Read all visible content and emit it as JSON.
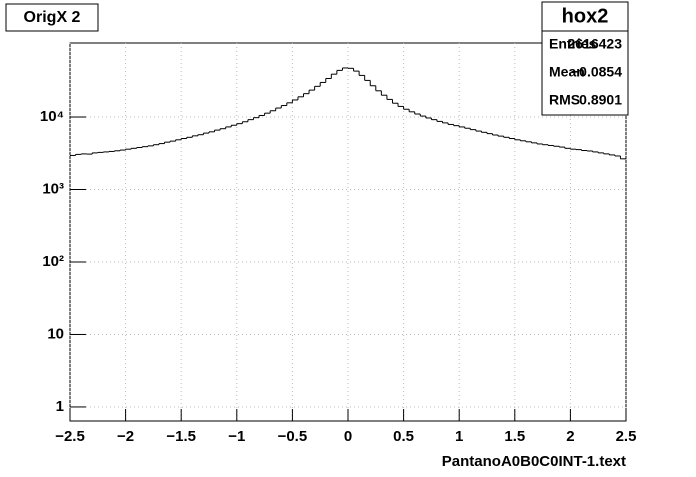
{
  "chart_data": {
    "type": "histogram",
    "title": "OrigX 2",
    "x_label": "PantanoA0B0C0INT-1.text",
    "bins": [
      -2.5,
      -2.45,
      -2.4,
      -2.35,
      -2.3,
      -2.25,
      -2.2,
      -2.15,
      -2.1,
      -2.05,
      -2,
      -1.95,
      -1.9,
      -1.85,
      -1.8,
      -1.75,
      -1.7,
      -1.65,
      -1.6,
      -1.55,
      -1.5,
      -1.45,
      -1.4,
      -1.35,
      -1.3,
      -1.25,
      -1.2,
      -1.15,
      -1.1,
      -1.05,
      -1,
      -0.95,
      -0.9,
      -0.85,
      -0.8,
      -0.75,
      -0.7,
      -0.65,
      -0.6,
      -0.55,
      -0.5,
      -0.45,
      -0.4,
      -0.35,
      -0.3,
      -0.25,
      -0.2,
      -0.15,
      -0.1,
      -0.05,
      0,
      0.05,
      0.1,
      0.15,
      0.2,
      0.25,
      0.3,
      0.35,
      0.4,
      0.45,
      0.5,
      0.55,
      0.6,
      0.65,
      0.7,
      0.75,
      0.8,
      0.85,
      0.9,
      0.95,
      1,
      1.05,
      1.1,
      1.15,
      1.2,
      1.25,
      1.3,
      1.35,
      1.4,
      1.45,
      1.5,
      1.55,
      1.6,
      1.65,
      1.7,
      1.75,
      1.8,
      1.85,
      1.9,
      1.95,
      2,
      2.05,
      2.1,
      2.15,
      2.2,
      2.25,
      2.3,
      2.35,
      2.4,
      2.45,
      2.5
    ],
    "values": [
      2950,
      3050,
      3100,
      3080,
      3200,
      3250,
      3300,
      3350,
      3420,
      3500,
      3600,
      3700,
      3800,
      3900,
      4000,
      4150,
      4300,
      4500,
      4650,
      4850,
      5050,
      5250,
      5500,
      5700,
      6000,
      6250,
      6600,
      6900,
      7300,
      7700,
      8100,
      8600,
      9200,
      9800,
      10500,
      11300,
      12200,
      13300,
      14400,
      15700,
      17200,
      19000,
      21000,
      23500,
      26500,
      30000,
      34000,
      39000,
      44000,
      47500,
      47000,
      43000,
      37500,
      32000,
      27000,
      23000,
      20000,
      17500,
      15500,
      14000,
      12800,
      11800,
      11000,
      10300,
      9700,
      9200,
      8700,
      8300,
      7900,
      7600,
      7300,
      7000,
      6700,
      6400,
      6150,
      5900,
      5650,
      5450,
      5250,
      5050,
      4850,
      4700,
      4550,
      4400,
      4250,
      4150,
      4050,
      3950,
      3850,
      3700,
      3600,
      3550,
      3450,
      3400,
      3300,
      3200,
      3100,
      3000,
      2900,
      2650
    ],
    "color": "#000000",
    "log_y": true,
    "grid": true,
    "xlim": [
      -2.5,
      2.5
    ],
    "xticks": [
      {
        "value": -2.5,
        "label": "−2.5"
      },
      {
        "value": -2,
        "label": "−2"
      },
      {
        "value": -1.5,
        "label": "−1.5"
      },
      {
        "value": -1,
        "label": "−1"
      },
      {
        "value": -0.5,
        "label": "−0.5"
      },
      0,
      0.5,
      1,
      1.5,
      2,
      2.5
    ],
    "ylim": [
      0.64,
      105000
    ],
    "yticks": [
      1,
      10,
      {
        "value": 100,
        "label": "10²"
      },
      {
        "value": 1000,
        "label": "10³"
      },
      {
        "value": 10000,
        "label": "10⁴"
      }
    ],
    "stats": {
      "title": "hox2",
      "rows": [
        [
          "Entries",
          "2616423"
        ],
        [
          "Mean",
          "−0.0854"
        ],
        [
          "RMS",
          "0.8901"
        ]
      ]
    }
  }
}
